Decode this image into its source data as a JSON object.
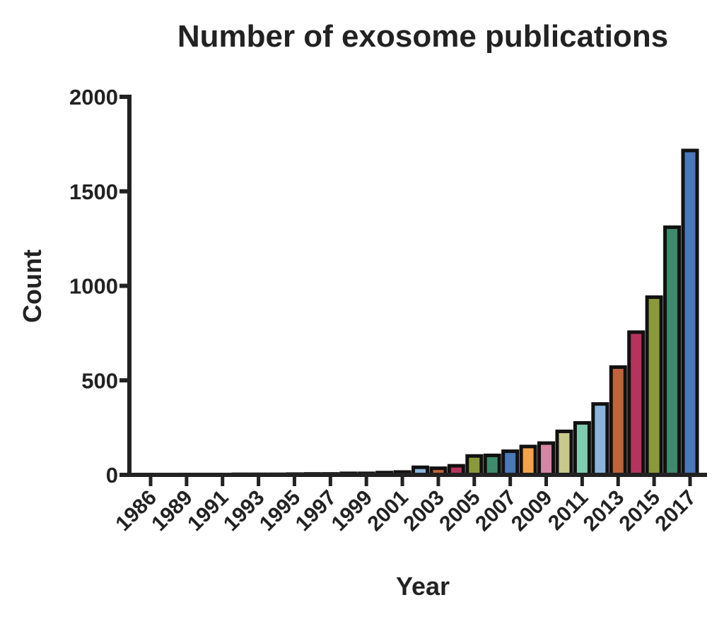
{
  "chart_data": {
    "type": "bar",
    "title": "Number of exosome publications",
    "x_label": "Year",
    "y_label": "Count",
    "categories": [
      "1986",
      null,
      "1989",
      null,
      "1991",
      null,
      "1993",
      null,
      "1995",
      null,
      "1997",
      null,
      "1999",
      null,
      "2001",
      null,
      "2003",
      null,
      "2005",
      null,
      "2007",
      null,
      "2009",
      null,
      "2011",
      null,
      "2013",
      null,
      "2015",
      null,
      "2017"
    ],
    "values": [
      1,
      1,
      2,
      2,
      2,
      3,
      3,
      3,
      4,
      5,
      5,
      8,
      8,
      12,
      15,
      40,
      35,
      48,
      100,
      103,
      125,
      150,
      168,
      230,
      275,
      375,
      570,
      755,
      940,
      1310,
      1716
    ],
    "colors": [
      "#4a78b8",
      "#f4a349",
      "#d885a5",
      "#c8c98a",
      "#7fcdb0",
      "#8ab4dc",
      "#c0643a",
      "#b5345d",
      "#8a9a3b",
      "#3e8a6c",
      "#4a78b8",
      "#f4a349",
      "#d885a5",
      "#c8c98a",
      "#7fcdb0",
      "#8ab4dc",
      "#c0643a",
      "#b5345d",
      "#8a9a3b",
      "#3e8a6c",
      "#4a78b8",
      "#f4a349",
      "#d885a5",
      "#c8c98a",
      "#7fcdb0",
      "#8ab4dc",
      "#c0643a",
      "#b5345d",
      "#8a9a3b",
      "#3e8a6c",
      "#4a78b8"
    ],
    "ylim": [
      0,
      2000
    ],
    "yticks": [
      0,
      500,
      1000,
      1500,
      2000
    ],
    "grid": false
  }
}
